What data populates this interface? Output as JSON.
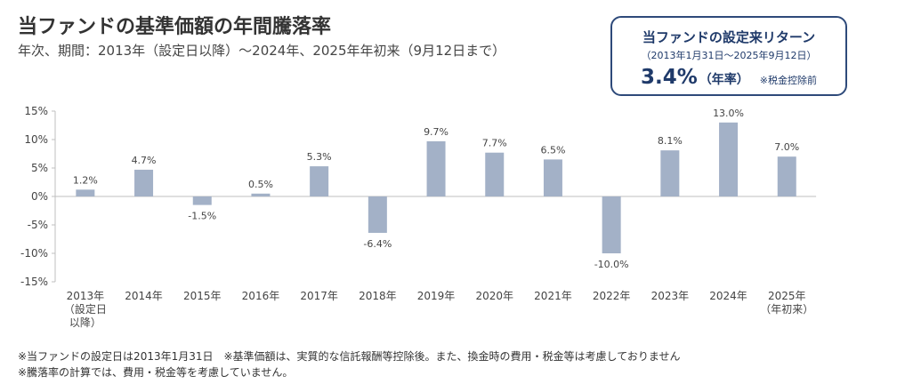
{
  "title": "当ファンドの基準価額の年間騰落率",
  "subtitle": "年次、期間：2013年（設定日以降）～2024年、2025年年初来（9月12日まで）",
  "return_box": {
    "title": "当ファンドの設定来リターン",
    "period": "（2013年1月31日～2025年9月12日）",
    "value": "3.4%",
    "unit": "（年率）",
    "note": "※税金控除前"
  },
  "chart_data": {
    "type": "bar",
    "categories": [
      [
        "2013年",
        "（設定日",
        "以降）"
      ],
      [
        "2014年"
      ],
      [
        "2015年"
      ],
      [
        "2016年"
      ],
      [
        "2017年"
      ],
      [
        "2018年"
      ],
      [
        "2019年"
      ],
      [
        "2020年"
      ],
      [
        "2021年"
      ],
      [
        "2022年"
      ],
      [
        "2023年"
      ],
      [
        "2024年"
      ],
      [
        "2025年",
        "（年初来）"
      ]
    ],
    "values": [
      1.2,
      4.7,
      -1.5,
      0.5,
      5.3,
      -6.4,
      9.7,
      7.7,
      6.5,
      -10.0,
      8.1,
      13.0,
      7.0
    ],
    "value_labels": [
      "1.2%",
      "4.7%",
      "-1.5%",
      "0.5%",
      "5.3%",
      "-6.4%",
      "9.7%",
      "7.7%",
      "6.5%",
      "-10.0%",
      "8.1%",
      "13.0%",
      "7.0%"
    ],
    "y_ticks": [
      15,
      10,
      5,
      0,
      -5,
      -10,
      -15
    ],
    "y_tick_labels": [
      "15%",
      "10%",
      "5%",
      "0%",
      "-5%",
      "-10%",
      "-15%"
    ],
    "ylim": [
      -15,
      15
    ],
    "grid": false,
    "bar_color": "#a3b1c7",
    "axis_color": "#bfbfbf"
  },
  "footnotes": [
    "※当ファンドの設定日は2013年1月31日　※基準価額は、実質的な信託報酬等控除後。また、換金時の費用・税金等は考慮しておりません",
    "※騰落率の計算では、費用・税金等を考慮していません。"
  ]
}
